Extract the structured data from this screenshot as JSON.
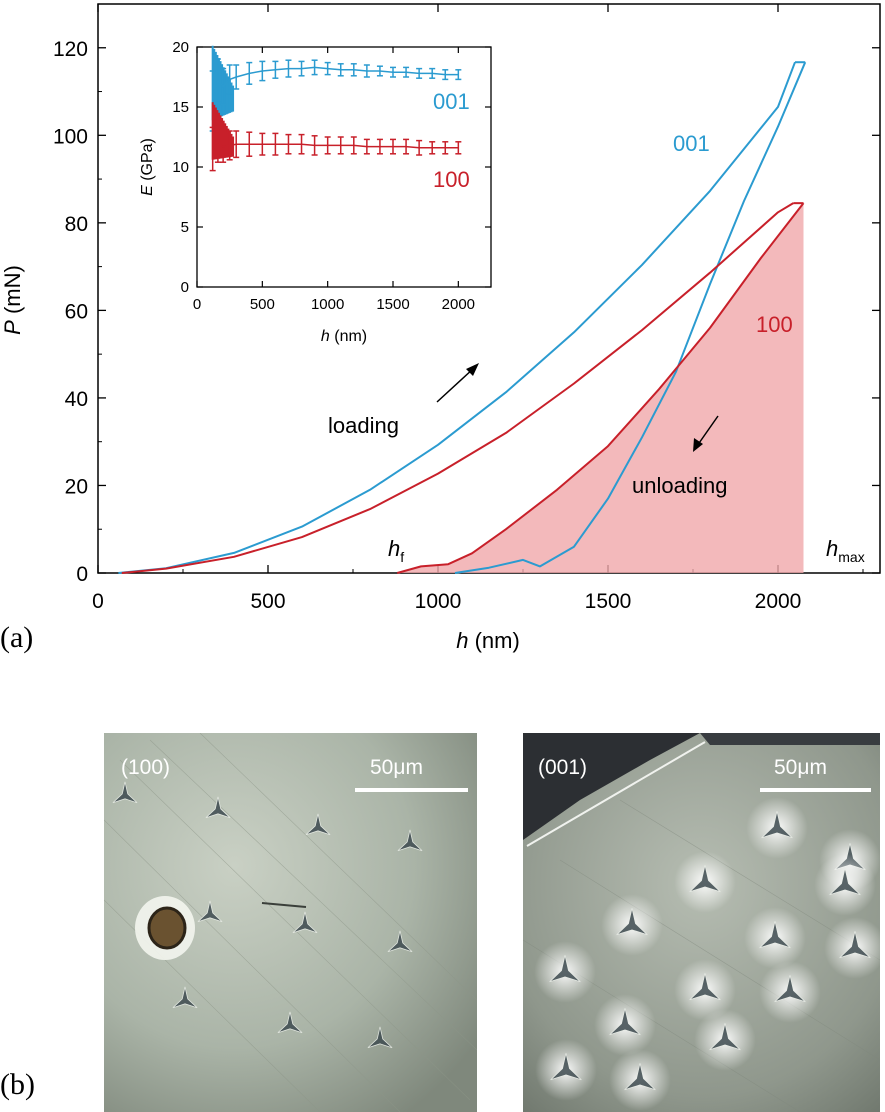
{
  "figure": {
    "panel_a_label": "(a)",
    "panel_b_label": "(b)"
  },
  "chart_data": [
    {
      "type": "line",
      "name": "load-displacement",
      "xlabel": "h (nm)",
      "xlabel_var": "h",
      "xlabel_unit": "(nm)",
      "ylabel": "P (mN)",
      "ylabel_var": "P",
      "ylabel_unit": "(mN)",
      "xlim": [
        0,
        2300
      ],
      "ylim": [
        0,
        130
      ],
      "xticks": [
        0,
        500,
        1000,
        1500,
        2000
      ],
      "yticks": [
        0,
        20,
        40,
        60,
        80,
        100,
        120
      ],
      "series": [
        {
          "name": "001 loading",
          "label": "001",
          "color": "#2b9bd0",
          "x": [
            60,
            200,
            400,
            600,
            800,
            1000,
            1200,
            1400,
            1600,
            1800,
            2000,
            2050
          ],
          "y": [
            0,
            1.1,
            4.6,
            10.6,
            19,
            29.3,
            41.3,
            55,
            70.4,
            87.3,
            106.5,
            116.7
          ]
        },
        {
          "name": "001 unloading",
          "color": "#2b9bd0",
          "x": [
            2080,
            2000,
            1900,
            1800,
            1700,
            1600,
            1500,
            1400,
            1300,
            1250,
            1150,
            1050
          ],
          "y": [
            116.7,
            102,
            85,
            66,
            46,
            31,
            17,
            6,
            1.5,
            3,
            1.2,
            0
          ]
        },
        {
          "name": "100 loading",
          "label": "100",
          "color": "#c8202a",
          "x": [
            70,
            200,
            400,
            600,
            800,
            1000,
            1200,
            1400,
            1600,
            1800,
            2000,
            2045
          ],
          "y": [
            0,
            1,
            3.7,
            8.2,
            14.6,
            22.7,
            32,
            43.3,
            55.5,
            68.6,
            82.4,
            84.5
          ]
        },
        {
          "name": "100 unloading",
          "color": "#c8202a",
          "x": [
            2075,
            1950,
            1800,
            1650,
            1500,
            1350,
            1200,
            1100,
            1030,
            950,
            880
          ],
          "y": [
            84.5,
            72,
            56,
            42,
            29,
            19,
            10,
            4.5,
            2,
            1.5,
            0
          ]
        }
      ],
      "annotations": {
        "loading": "loading",
        "unloading": "unloading",
        "label_001": "001",
        "label_100": "100",
        "h_f_main": "h",
        "h_f_sub": "f",
        "h_max_main": "h",
        "h_max_sub": "max"
      }
    },
    {
      "type": "line",
      "name": "inset-modulus",
      "xlabel": "h (nm)",
      "xlabel_var": "h",
      "xlabel_unit": "(nm)",
      "ylabel": "E (GPa)",
      "ylabel_var": "E",
      "ylabel_unit": "(GPa)",
      "xlim": [
        0,
        2250
      ],
      "ylim": [
        0,
        20
      ],
      "xticks": [
        0,
        500,
        1000,
        1500,
        2000
      ],
      "yticks": [
        0,
        5,
        10,
        15,
        20
      ],
      "series": [
        {
          "name": "001",
          "label": "001",
          "color": "#2b9bd0",
          "x": [
            120,
            160,
            200,
            250,
            300,
            400,
            500,
            600,
            700,
            800,
            900,
            1000,
            1100,
            1200,
            1300,
            1400,
            1500,
            1600,
            1700,
            1800,
            1900,
            2000
          ],
          "y": [
            15.5,
            17.2,
            16.7,
            17.3,
            17.5,
            17.8,
            18.0,
            18.1,
            18.2,
            18.2,
            18.3,
            18.2,
            18.1,
            18.1,
            18.0,
            18.0,
            17.9,
            17.9,
            17.8,
            17.8,
            17.7,
            17.7
          ],
          "err": [
            2.5,
            1.8,
            1.5,
            1.2,
            1.0,
            0.9,
            0.8,
            0.7,
            0.7,
            0.6,
            0.6,
            0.5,
            0.5,
            0.5,
            0.5,
            0.4,
            0.4,
            0.4,
            0.4,
            0.4,
            0.4,
            0.4
          ]
        },
        {
          "name": "100",
          "label": "100",
          "color": "#c8202a",
          "x": [
            120,
            160,
            200,
            250,
            300,
            400,
            500,
            600,
            700,
            800,
            900,
            1000,
            1100,
            1200,
            1300,
            1400,
            1500,
            1600,
            1700,
            1800,
            1900,
            2000
          ],
          "y": [
            11.5,
            11.9,
            11.7,
            11.8,
            11.9,
            11.9,
            11.9,
            11.9,
            11.9,
            11.9,
            11.8,
            11.8,
            11.8,
            11.8,
            11.7,
            11.7,
            11.7,
            11.7,
            11.6,
            11.6,
            11.6,
            11.6
          ],
          "err": [
            1.8,
            1.5,
            1.3,
            1.2,
            1.1,
            1.0,
            0.9,
            0.9,
            0.8,
            0.8,
            0.8,
            0.7,
            0.7,
            0.7,
            0.6,
            0.6,
            0.6,
            0.6,
            0.6,
            0.5,
            0.5,
            0.5
          ]
        }
      ],
      "annotations": {
        "label_001": "001",
        "label_100": "100"
      }
    }
  ],
  "photos": {
    "left": {
      "label": "(100)",
      "scale_bar": "50μm"
    },
    "right": {
      "label": "(001)",
      "scale_bar": "50μm"
    }
  }
}
